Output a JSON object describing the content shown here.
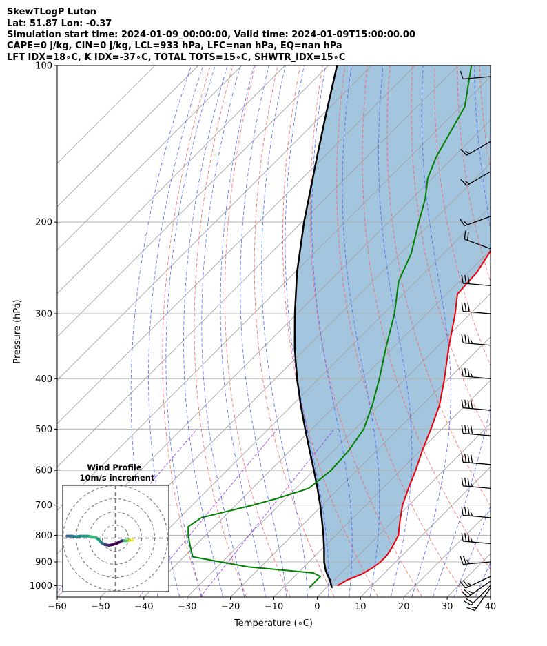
{
  "header": {
    "line1": "SkewTLogP Luton",
    "line2": "Lat: 51.87   Lon: -0.37",
    "line3": "Simulation start time: 2024-01-09_00:00:00, Valid time: 2024-01-09T15:00:00.00",
    "line4": "CAPE=0 j/kg, CIN=0 j/kg, LCL=933 hPa, LFC=nan hPa, EQ=nan hPa",
    "line5": "LFT IDX=18∘C, K IDX=-37∘C, TOTAL TOTS=15∘C, SHWTR_IDX=15∘C"
  },
  "chart_data": {
    "type": "line",
    "subtype": "skew-T log-P diagram",
    "xlabel": "Temperature (∘C)",
    "ylabel": "Pressure (hPa)",
    "xlim": [
      -60,
      40
    ],
    "ylim_hpa": [
      1050,
      100
    ],
    "x_ticks": [
      -60,
      -50,
      -40,
      -30,
      -20,
      -10,
      0,
      10,
      20,
      30,
      40
    ],
    "x_tick_labels": [
      "−60",
      "−50",
      "−40",
      "−30",
      "−20",
      "−10",
      "0",
      "10",
      "20",
      "30",
      "40"
    ],
    "y_ticks": [
      100,
      200,
      300,
      400,
      500,
      600,
      700,
      800,
      900,
      1000
    ],
    "y_tick_labels": [
      "100",
      "200",
      "300",
      "400",
      "500",
      "600",
      "700",
      "800",
      "900",
      "1000"
    ],
    "grid": true,
    "colors": {
      "temperature": "#e8000b",
      "dewpoint": "#008000",
      "parcel": "#000000",
      "shading": "#a3c5de",
      "dry_adiabat": "#ff5a5a",
      "moist_adiabat": "#4a5dff",
      "mixing_ratio": "#8a2be2",
      "isotherm": "#a0a0a0"
    },
    "series": [
      {
        "key": "temperature",
        "p": [
          1000,
          975,
          950,
          925,
          900,
          875,
          850,
          800,
          750,
          700,
          650,
          600,
          550,
          500,
          450,
          400,
          350,
          300,
          275,
          250,
          225,
          200,
          175,
          150,
          135,
          125,
          115,
          100
        ],
        "t": [
          2.0,
          3.0,
          5.0,
          6.0,
          6.5,
          6.5,
          6.0,
          4.5,
          1.5,
          -1.5,
          -4.0,
          -6.5,
          -9.5,
          -12.5,
          -16.0,
          -21.0,
          -27.0,
          -33.5,
          -37.5,
          -38.0,
          -40.0,
          -45.0,
          -50.0,
          -56.0,
          -62.0,
          -65.0,
          -68.0,
          -74.0
        ]
      },
      {
        "key": "dewpoint",
        "p": [
          1010,
          990,
          960,
          945,
          920,
          880,
          840,
          800,
          770,
          740,
          700,
          680,
          650,
          600,
          550,
          500,
          450,
          400,
          350,
          300,
          260,
          230,
          200,
          180,
          165,
          150,
          120,
          100
        ],
        "t": [
          -4.0,
          -4.0,
          -4.0,
          -6.5,
          -23.0,
          -38.0,
          -41.0,
          -44.0,
          -46.0,
          -45.0,
          -36.0,
          -32.0,
          -27.0,
          -26.0,
          -26.5,
          -28.0,
          -31.5,
          -36.0,
          -41.5,
          -47.5,
          -54.0,
          -57.5,
          -63.0,
          -67.0,
          -71.0,
          -74.0,
          -79.0,
          -87.0
        ]
      },
      {
        "key": "parcel",
        "p": [
          1010,
          975,
          950,
          933,
          900,
          850,
          800,
          750,
          700,
          650,
          600,
          550,
          500,
          450,
          400,
          350,
          300,
          250,
          200,
          150,
          125,
          100
        ],
        "t": [
          1.3,
          -1.0,
          -3.0,
          -4.3,
          -6.5,
          -9.5,
          -12.8,
          -16.5,
          -20.5,
          -25.0,
          -30.0,
          -35.5,
          -41.5,
          -48.0,
          -55.0,
          -62.5,
          -70.5,
          -79.5,
          -89.5,
          -101.5,
          -109.0,
          -118.0
        ]
      }
    ],
    "winds": {
      "p": [
        105,
        140,
        160,
        195,
        225,
        265,
        300,
        345,
        400,
        460,
        515,
        585,
        650,
        740,
        830,
        900,
        960,
        980,
        1000,
        1010
      ],
      "speed_kt": [
        10,
        15,
        15,
        15,
        20,
        30,
        30,
        35,
        35,
        40,
        40,
        40,
        35,
        35,
        35,
        25,
        25,
        25,
        20,
        15
      ],
      "dir_deg": [
        265,
        240,
        240,
        250,
        290,
        275,
        275,
        275,
        275,
        275,
        275,
        275,
        275,
        275,
        275,
        265,
        245,
        235,
        225,
        215
      ]
    },
    "hodograph": {
      "title_line1": "Wind Profile",
      "title_line2": "10m/s increment",
      "rings_ms": [
        10,
        20,
        30,
        40
      ],
      "path_ms": [
        [
          13,
          -1.5
        ],
        [
          11,
          -1.5
        ],
        [
          9,
          -2
        ],
        [
          7,
          -2
        ],
        [
          5,
          -2
        ],
        [
          3,
          -3
        ],
        [
          1,
          -4
        ],
        [
          -2,
          -5
        ],
        [
          -5,
          -5.5
        ],
        [
          -8,
          -5
        ],
        [
          -10,
          -4
        ],
        [
          -11,
          -3
        ],
        [
          -12,
          -2
        ],
        [
          -13,
          -1
        ],
        [
          -15,
          0.5
        ],
        [
          -18,
          1
        ],
        [
          -21,
          1.5
        ],
        [
          -24,
          1.5
        ],
        [
          -27,
          1.5
        ],
        [
          -30,
          1
        ],
        [
          -33,
          1.5
        ],
        [
          -35,
          1.5
        ],
        [
          -37,
          1.5
        ]
      ]
    }
  }
}
